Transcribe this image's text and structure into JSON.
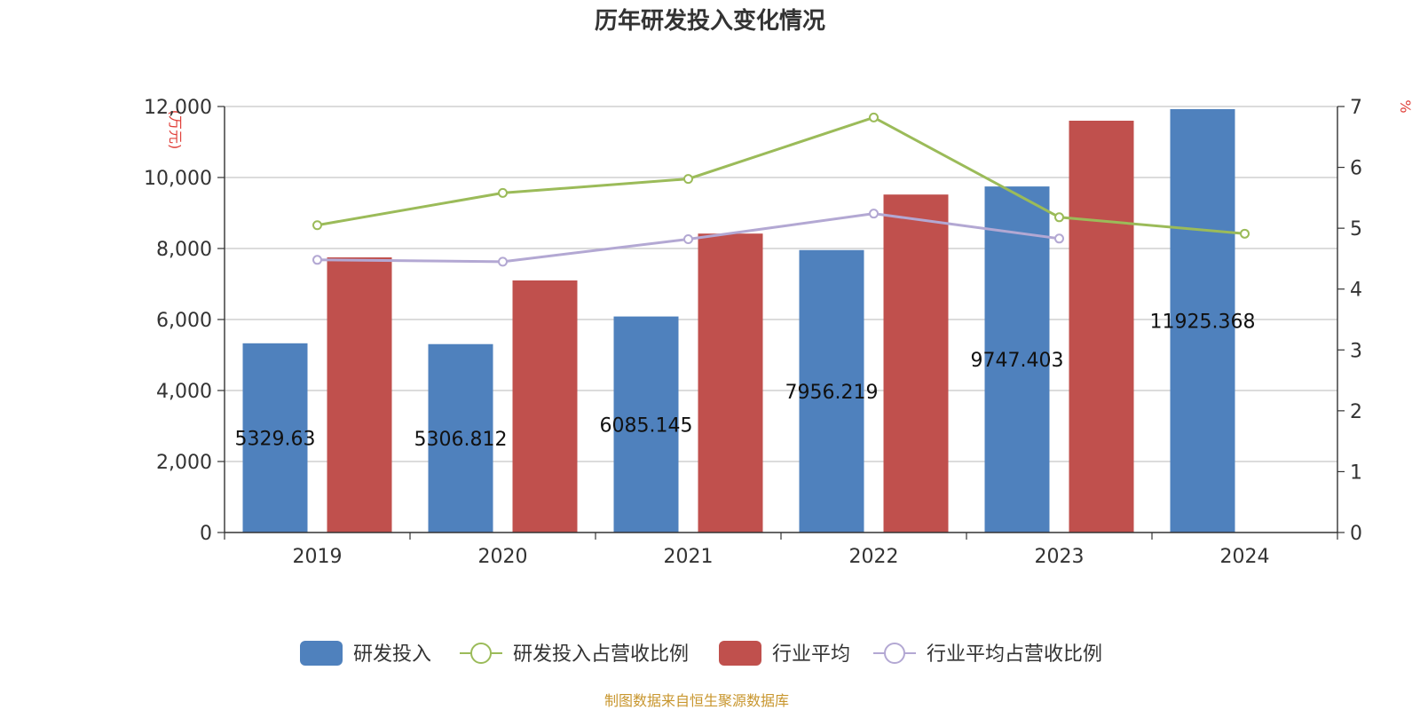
{
  "chart_data": {
    "type": "bar",
    "title": "历年研发投入变化情况",
    "categories": [
      "2019",
      "2020",
      "2021",
      "2022",
      "2023",
      "2024"
    ],
    "y_left": {
      "unit_label": "(万元)",
      "range": [
        0,
        12000
      ],
      "ticks": [
        0,
        2000,
        4000,
        6000,
        8000,
        10000,
        12000
      ],
      "tick_labels": [
        "0",
        "2,000",
        "4,000",
        "6,000",
        "8,000",
        "10,000",
        "12,000"
      ]
    },
    "y_right": {
      "unit_label": "%",
      "range": [
        0,
        7
      ],
      "ticks": [
        0,
        1,
        2,
        3,
        4,
        5,
        6,
        7
      ],
      "tick_labels": [
        "0",
        "1",
        "2",
        "3",
        "4",
        "5",
        "6",
        "7"
      ]
    },
    "series": [
      {
        "name": "研发投入",
        "kind": "bar",
        "axis": "left",
        "color": "#4f81bd",
        "values": [
          5329.63,
          5306.812,
          6085.145,
          7956.219,
          9747.403,
          11925.368
        ],
        "labels": [
          "5329.63",
          "5306.812",
          "6085.145",
          "7956.219",
          "9747.403",
          "11925.368"
        ]
      },
      {
        "name": "研发投入占营收比例",
        "kind": "line",
        "axis": "right",
        "color": "#9bbb59",
        "values": [
          5.05,
          5.58,
          5.81,
          6.82,
          5.18,
          4.91
        ]
      },
      {
        "name": "行业平均",
        "kind": "bar",
        "axis": "left",
        "color": "#c0504d",
        "values": [
          7750,
          7100,
          8420,
          9520,
          11600,
          null
        ]
      },
      {
        "name": "行业平均占营收比例",
        "kind": "line",
        "axis": "right",
        "color": "#b3a8d3",
        "values": [
          4.48,
          4.45,
          4.82,
          5.24,
          4.83,
          null
        ]
      }
    ],
    "legend_position": "bottom",
    "grid": true
  },
  "footer": {
    "source": "制图数据来自恒生聚源数据库"
  }
}
